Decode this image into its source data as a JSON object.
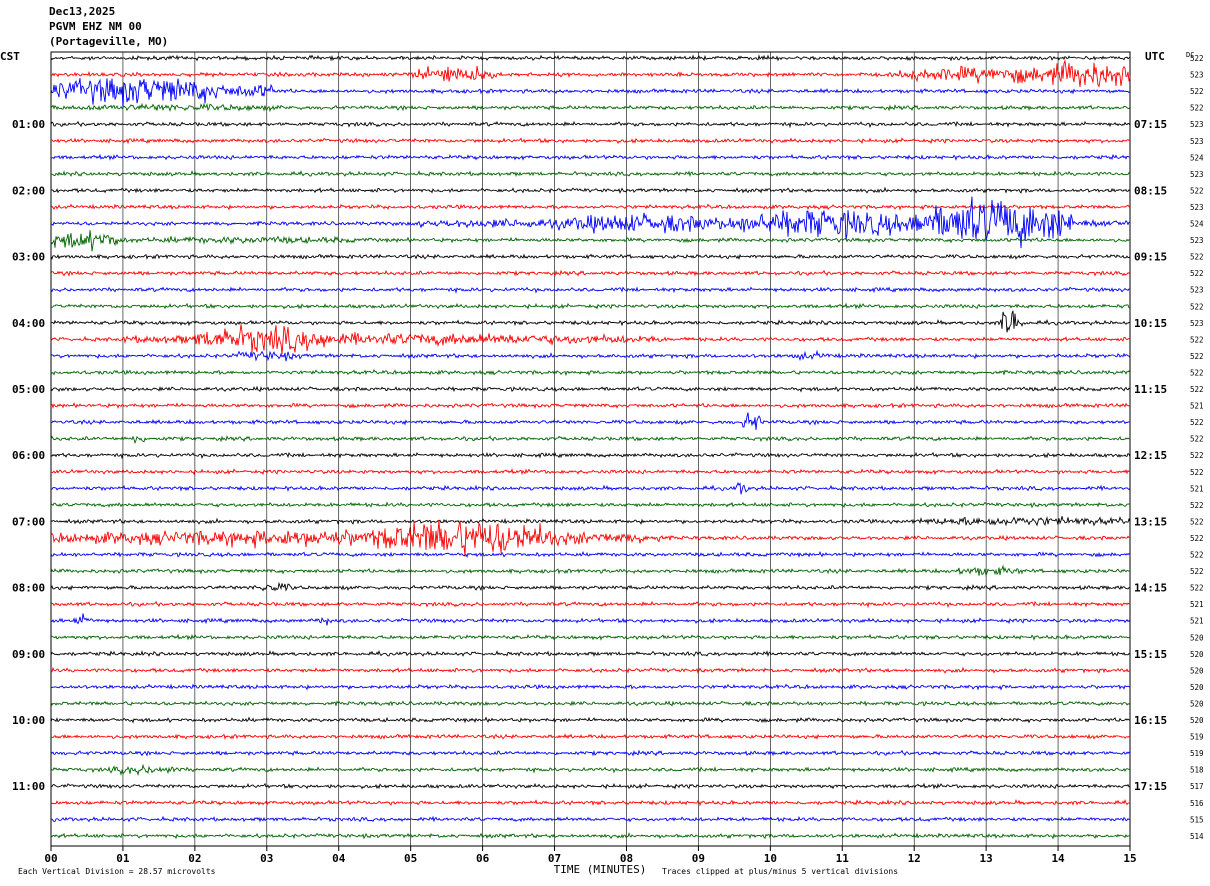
{
  "header": {
    "date": "Dec13,2025",
    "station": "PGVM EHZ NM 00",
    "location": "(Portageville, MO)"
  },
  "chart_data": {
    "type": "helicorder",
    "left_timezone": "CST",
    "right_timezone": "UTC",
    "dc_label": "DC",
    "xlabel": "TIME (MINUTES)",
    "xticks": [
      "00",
      "01",
      "02",
      "03",
      "04",
      "05",
      "06",
      "07",
      "08",
      "09",
      "10",
      "11",
      "12",
      "13",
      "14",
      "15"
    ],
    "xlim": [
      0,
      15
    ],
    "left_hour_labels": [
      "01:00",
      "02:00",
      "03:00",
      "04:00",
      "05:00",
      "06:00",
      "07:00",
      "08:00",
      "09:00",
      "10:00",
      "11:00"
    ],
    "right_hour_labels": [
      "07:15",
      "08:15",
      "09:15",
      "10:15",
      "11:15",
      "12:15",
      "13:15",
      "14:15",
      "15:15",
      "16:15",
      "17:15"
    ],
    "trace_colors": [
      "#000000",
      "#ff0000",
      "#0000ff",
      "#006400"
    ],
    "dc_offsets": [
      522,
      523,
      522,
      522,
      523,
      523,
      524,
      523,
      522,
      523,
      524,
      523,
      522,
      522,
      523,
      522,
      523,
      522,
      522,
      522,
      522,
      521,
      522,
      522,
      522,
      522,
      521,
      522,
      522,
      522,
      522,
      522,
      522,
      521,
      521,
      520,
      520,
      520,
      520,
      520,
      520,
      519,
      519,
      518,
      517,
      516,
      515,
      514
    ],
    "events": [
      {
        "trace": 1,
        "start": 5.0,
        "end": 6.2,
        "amp": 7
      },
      {
        "trace": 1,
        "start": 11.8,
        "end": 15.0,
        "amp": 7
      },
      {
        "trace": 1,
        "start": 13.8,
        "end": 15.0,
        "amp": 12
      },
      {
        "trace": 2,
        "start": 0.0,
        "end": 2.4,
        "amp": 12
      },
      {
        "trace": 2,
        "start": 2.4,
        "end": 3.2,
        "amp": 6
      },
      {
        "trace": 3,
        "start": 0.0,
        "end": 3.5,
        "amp": 3
      },
      {
        "trace": 10,
        "start": 5.0,
        "end": 15.0,
        "amp": 5
      },
      {
        "trace": 10,
        "start": 7.0,
        "end": 9.5,
        "amp": 8
      },
      {
        "trace": 10,
        "start": 9.5,
        "end": 12.0,
        "amp": 12
      },
      {
        "trace": 10,
        "start": 12.0,
        "end": 14.2,
        "amp": 20
      },
      {
        "trace": 11,
        "start": 0.0,
        "end": 1.0,
        "amp": 8
      },
      {
        "trace": 11,
        "start": 1.0,
        "end": 4.5,
        "amp": 3
      },
      {
        "trace": 16,
        "start": 13.2,
        "end": 13.5,
        "amp": 14
      },
      {
        "trace": 17,
        "start": 1.0,
        "end": 8.5,
        "amp": 5
      },
      {
        "trace": 17,
        "start": 2.0,
        "end": 4.0,
        "amp": 11
      },
      {
        "trace": 18,
        "start": 2.5,
        "end": 3.5,
        "amp": 4
      },
      {
        "trace": 18,
        "start": 10.2,
        "end": 10.9,
        "amp": 3
      },
      {
        "trace": 22,
        "start": 9.6,
        "end": 9.9,
        "amp": 8
      },
      {
        "trace": 23,
        "start": 1.1,
        "end": 1.3,
        "amp": 5
      },
      {
        "trace": 26,
        "start": 9.5,
        "end": 9.7,
        "amp": 6
      },
      {
        "trace": 28,
        "start": 12.0,
        "end": 15.0,
        "amp": 4
      },
      {
        "trace": 29,
        "start": 0.0,
        "end": 8.5,
        "amp": 7
      },
      {
        "trace": 29,
        "start": 4.5,
        "end": 7.0,
        "amp": 16
      },
      {
        "trace": 31,
        "start": 12.5,
        "end": 13.5,
        "amp": 4
      },
      {
        "trace": 32,
        "start": 2.8,
        "end": 3.4,
        "amp": 4
      },
      {
        "trace": 34,
        "start": 0.3,
        "end": 0.6,
        "amp": 5
      },
      {
        "trace": 34,
        "start": 3.7,
        "end": 3.9,
        "amp": 4
      },
      {
        "trace": 43,
        "start": 0.8,
        "end": 1.8,
        "amp": 4
      }
    ]
  },
  "footer": {
    "scale_note": "Each Vertical Division =   28.57 microvolts",
    "clip_note": "Traces clipped at plus/minus 5 vertical divisions"
  }
}
